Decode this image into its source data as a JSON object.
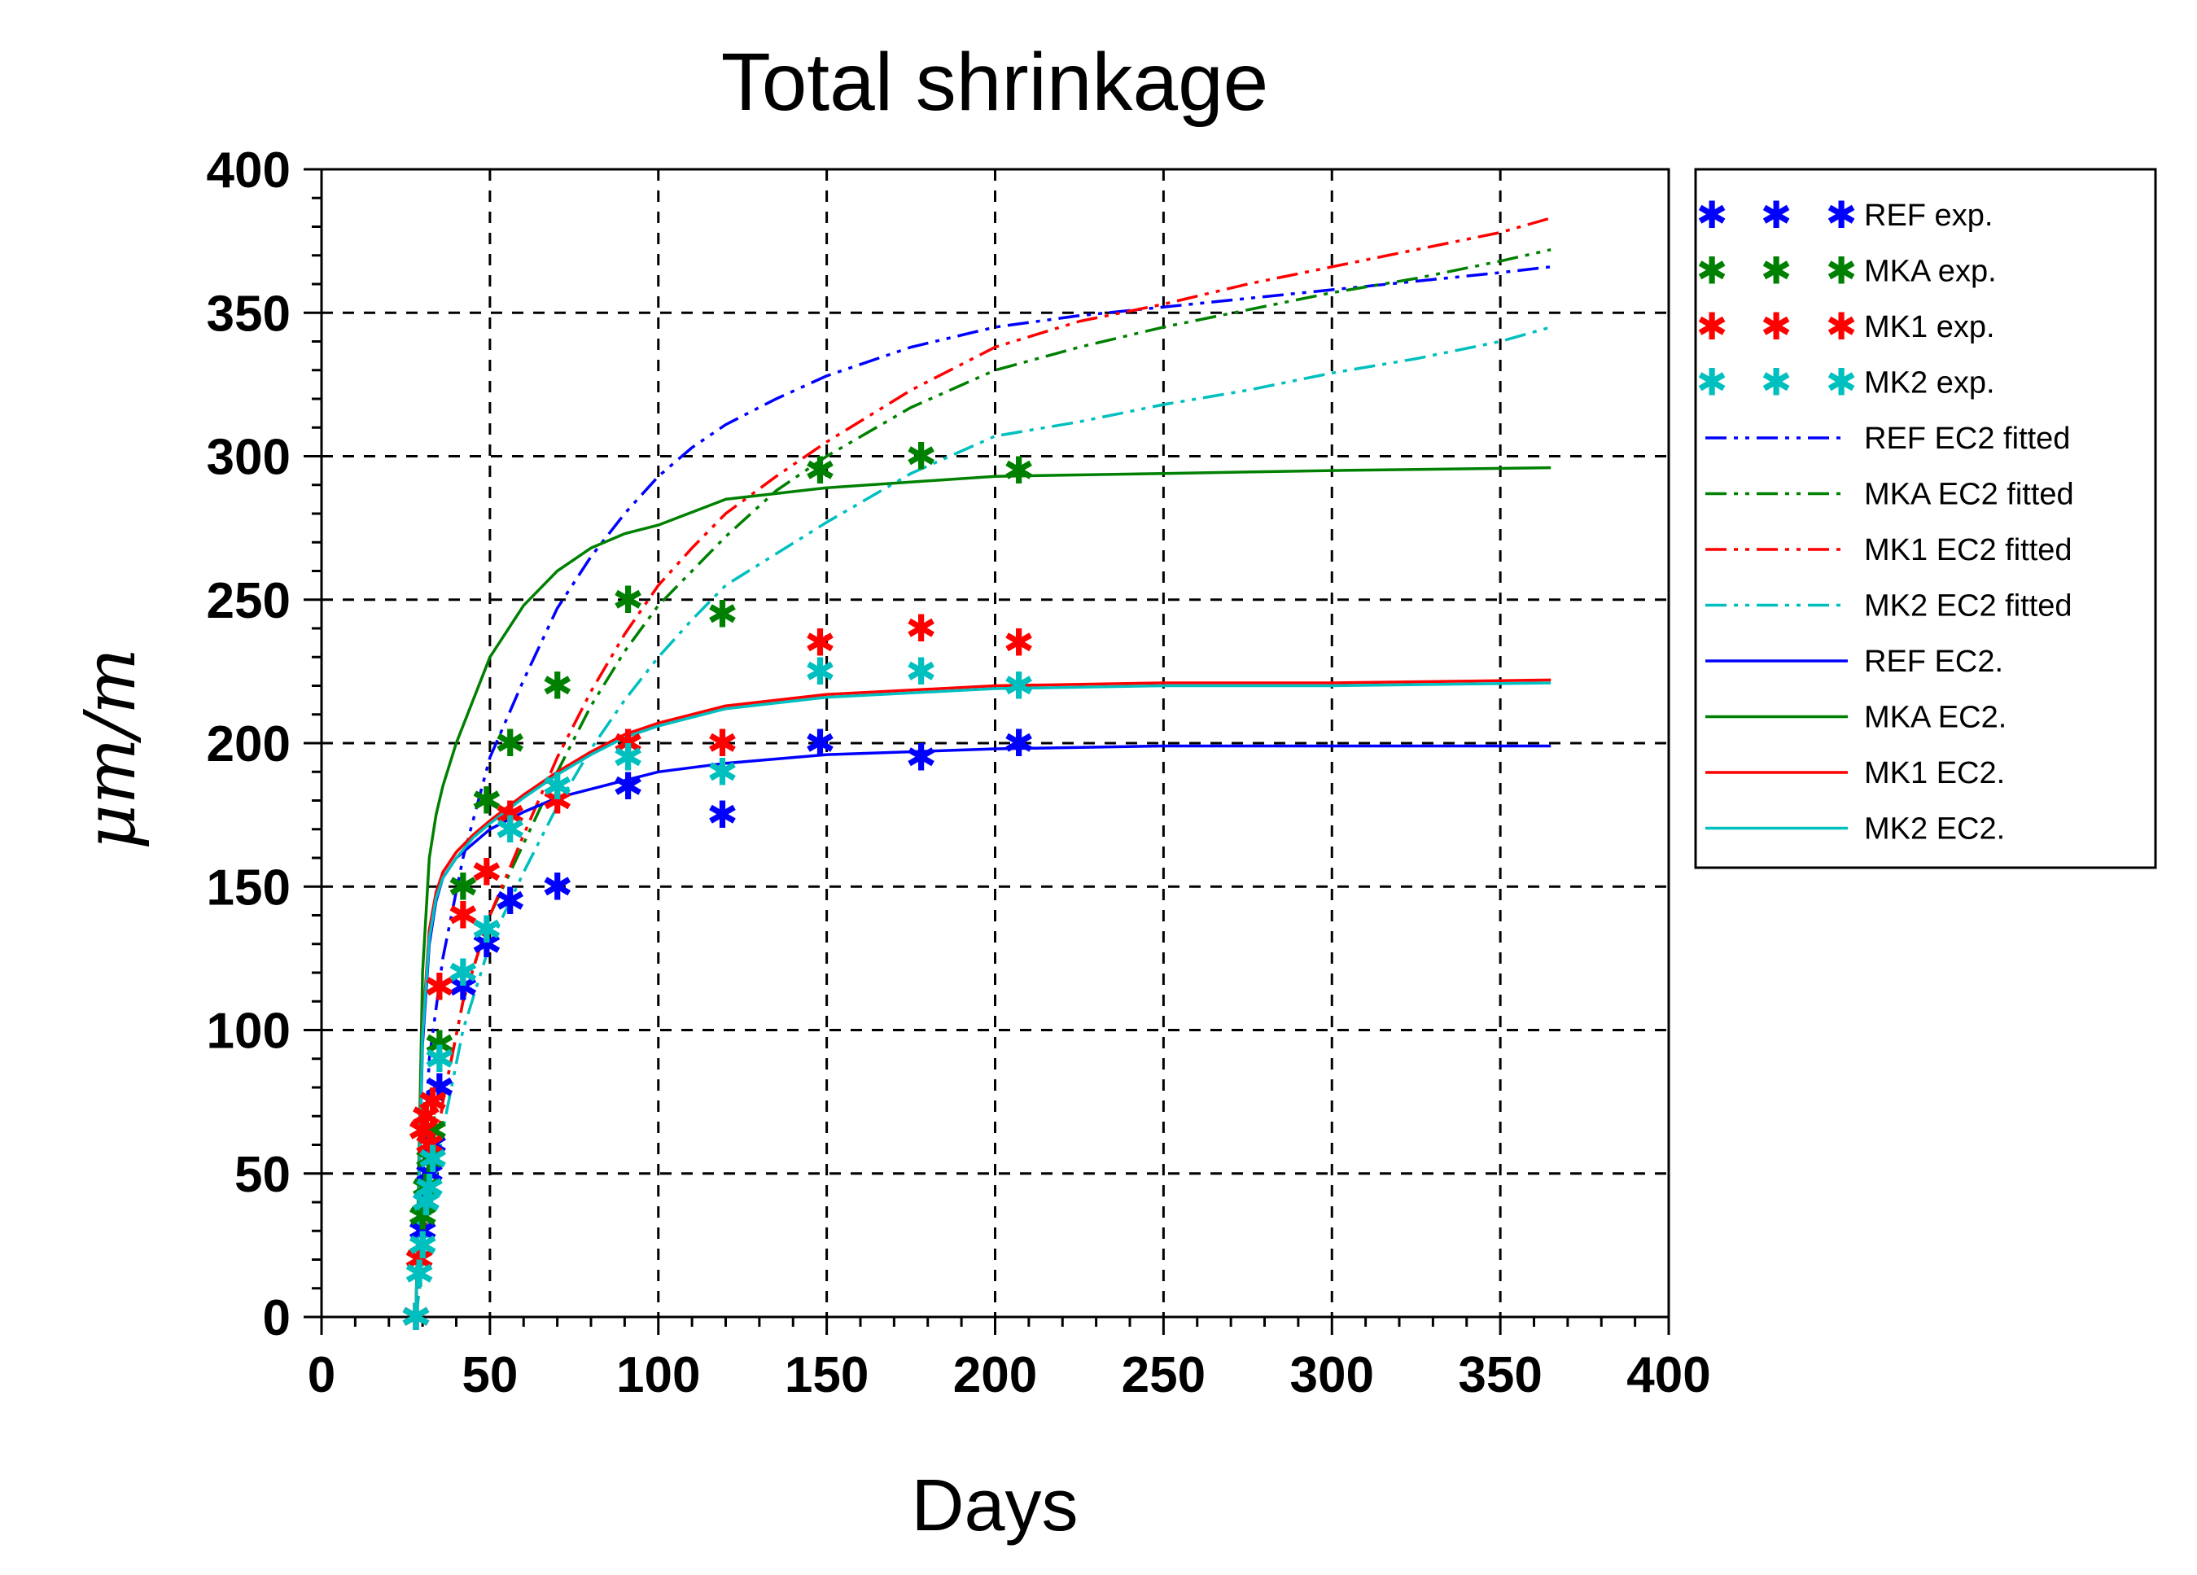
{
  "chart_data": {
    "type": "line",
    "title": "Total shrinkage",
    "xlabel": "Days",
    "ylabel": "μm/m",
    "xlim": [
      0,
      400
    ],
    "ylim": [
      0,
      400
    ],
    "xticks": [
      0,
      50,
      100,
      150,
      200,
      250,
      300,
      350,
      400
    ],
    "yticks": [
      0,
      50,
      100,
      150,
      200,
      250,
      300,
      350,
      400
    ],
    "grid": true,
    "legend_position": "right-outside",
    "series": [
      {
        "name": "REF exp.",
        "kind": "scatter",
        "color": "#0000ff",
        "x": [
          28,
          29,
          30,
          31,
          32,
          33,
          35,
          42,
          49,
          56,
          70,
          91,
          119,
          148,
          178,
          207
        ],
        "y": [
          0,
          20,
          30,
          40,
          50,
          60,
          80,
          115,
          130,
          145,
          150,
          185,
          175,
          200,
          195,
          200
        ]
      },
      {
        "name": "MKA exp.",
        "kind": "scatter",
        "color": "#008000",
        "x": [
          28,
          29,
          30,
          31,
          32,
          33,
          35,
          42,
          49,
          56,
          70,
          91,
          119,
          148,
          178,
          207
        ],
        "y": [
          0,
          20,
          35,
          45,
          55,
          65,
          95,
          150,
          180,
          200,
          220,
          250,
          245,
          295,
          300,
          295
        ]
      },
      {
        "name": "MK1 exp.",
        "kind": "scatter",
        "color": "#ff0000",
        "x": [
          28,
          29,
          30,
          31,
          32,
          33,
          35,
          42,
          49,
          56,
          70,
          91,
          119,
          148,
          178,
          207
        ],
        "y": [
          0,
          20,
          65,
          70,
          60,
          75,
          115,
          140,
          155,
          175,
          180,
          200,
          200,
          235,
          240,
          235
        ]
      },
      {
        "name": "MK2 exp.",
        "kind": "scatter",
        "color": "#00bfbf",
        "x": [
          28,
          29,
          30,
          31,
          32,
          33,
          35,
          42,
          49,
          56,
          70,
          91,
          119,
          148,
          178,
          207
        ],
        "y": [
          0,
          15,
          25,
          40,
          45,
          55,
          90,
          120,
          135,
          170,
          185,
          195,
          190,
          225,
          225,
          220
        ]
      },
      {
        "name": "REF EC2 fitted",
        "kind": "line",
        "dash": "dashdot",
        "color": "#0000ff",
        "x": [
          28,
          32,
          36,
          42,
          50,
          60,
          70,
          80,
          90,
          100,
          110,
          120,
          135,
          150,
          175,
          200,
          225,
          250,
          275,
          300,
          325,
          350,
          365
        ],
        "y": [
          0,
          90,
          125,
          160,
          195,
          222,
          247,
          265,
          280,
          293,
          303,
          311,
          320,
          328,
          338,
          345,
          349,
          352,
          355,
          358,
          361,
          364,
          366
        ]
      },
      {
        "name": "MKA EC2 fitted",
        "kind": "line",
        "dash": "dashdot",
        "color": "#008000",
        "x": [
          28,
          32,
          36,
          42,
          50,
          60,
          70,
          80,
          90,
          100,
          110,
          120,
          135,
          150,
          175,
          200,
          225,
          250,
          275,
          300,
          325,
          350,
          365
        ],
        "y": [
          0,
          40,
          75,
          110,
          140,
          165,
          190,
          213,
          232,
          248,
          260,
          272,
          288,
          300,
          317,
          330,
          338,
          345,
          351,
          357,
          362,
          368,
          372
        ]
      },
      {
        "name": "MK1 EC2 fitted",
        "kind": "line",
        "dash": "dashdot",
        "color": "#ff0000",
        "x": [
          28,
          32,
          36,
          42,
          50,
          60,
          70,
          80,
          90,
          100,
          110,
          120,
          135,
          150,
          175,
          200,
          225,
          250,
          275,
          300,
          325,
          350,
          365
        ],
        "y": [
          0,
          40,
          75,
          110,
          140,
          168,
          195,
          218,
          238,
          255,
          268,
          280,
          293,
          305,
          323,
          338,
          347,
          353,
          360,
          366,
          372,
          378,
          383
        ]
      },
      {
        "name": "MK2 EC2 fitted",
        "kind": "line",
        "dash": "dashdot",
        "color": "#00bfbf",
        "x": [
          28,
          32,
          36,
          42,
          50,
          60,
          70,
          80,
          90,
          100,
          110,
          120,
          135,
          150,
          175,
          200,
          225,
          250,
          275,
          300,
          325,
          350,
          365
        ],
        "y": [
          0,
          35,
          65,
          100,
          130,
          155,
          178,
          198,
          215,
          230,
          243,
          255,
          266,
          277,
          294,
          307,
          312,
          318,
          323,
          329,
          334,
          340,
          345
        ]
      },
      {
        "name": "REF EC2.",
        "kind": "line",
        "dash": "solid",
        "color": "#0000ff",
        "x": [
          28,
          30,
          32,
          34,
          36,
          40,
          45,
          50,
          60,
          70,
          80,
          90,
          100,
          120,
          150,
          200,
          250,
          300,
          365
        ],
        "y": [
          0,
          95,
          130,
          145,
          153,
          160,
          165,
          170,
          176,
          181,
          184,
          187,
          190,
          193,
          196,
          198,
          199,
          199,
          199
        ]
      },
      {
        "name": "MKA EC2.",
        "kind": "line",
        "dash": "solid",
        "color": "#008000",
        "x": [
          28,
          30,
          32,
          34,
          36,
          40,
          45,
          50,
          60,
          70,
          80,
          90,
          100,
          120,
          150,
          200,
          250,
          300,
          365
        ],
        "y": [
          0,
          120,
          160,
          175,
          185,
          200,
          215,
          230,
          248,
          260,
          268,
          273,
          276,
          285,
          289,
          293,
          294,
          295,
          296
        ]
      },
      {
        "name": "MK1 EC2.",
        "kind": "line",
        "dash": "solid",
        "color": "#ff0000",
        "x": [
          28,
          30,
          32,
          34,
          36,
          40,
          45,
          50,
          60,
          70,
          80,
          90,
          100,
          120,
          150,
          200,
          250,
          300,
          365
        ],
        "y": [
          0,
          100,
          135,
          148,
          155,
          162,
          168,
          173,
          182,
          190,
          197,
          203,
          207,
          213,
          217,
          220,
          221,
          221,
          222
        ]
      },
      {
        "name": "MK2 EC2.",
        "kind": "line",
        "dash": "solid",
        "color": "#00bfbf",
        "x": [
          28,
          30,
          32,
          34,
          36,
          40,
          45,
          50,
          60,
          70,
          80,
          90,
          100,
          120,
          150,
          200,
          250,
          300,
          365
        ],
        "y": [
          0,
          98,
          132,
          146,
          153,
          160,
          167,
          172,
          181,
          189,
          196,
          202,
          206,
          212,
          216,
          219,
          220,
          220,
          221
        ]
      }
    ]
  }
}
